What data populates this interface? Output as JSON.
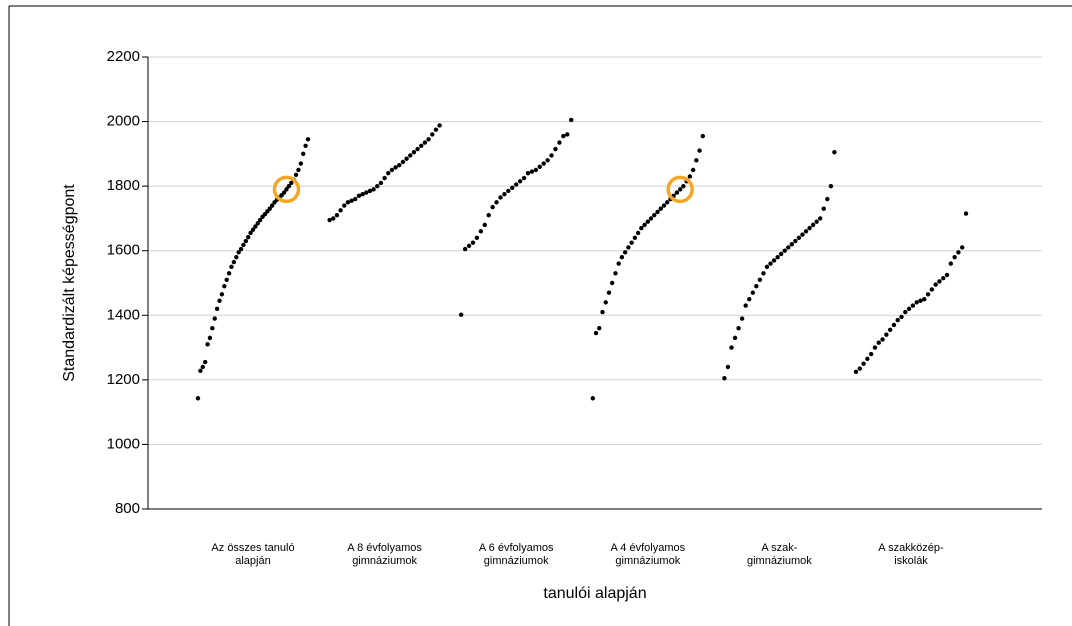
{
  "chart_data": {
    "type": "strip",
    "ylabel": "Standardizált képességpont",
    "xlabel": "tanulói alapján",
    "categories": [
      [
        "Az összes tanuló",
        "alapján"
      ],
      [
        "A 8 évfolyamos",
        "gimnáziumok"
      ],
      [
        "A 6 évfolyamos",
        "gimnáziumok"
      ],
      [
        "A 4 évfolyamos",
        "gimnáziumok"
      ],
      [
        "A szak-",
        "gimnáziumok"
      ],
      [
        "A szakközép-",
        "iskolák"
      ]
    ],
    "color": "#000000",
    "groups": [
      [
        1143,
        1228,
        1240,
        1255,
        1310,
        1330,
        1360,
        1390,
        1420,
        1445,
        1465,
        1490,
        1510,
        1530,
        1550,
        1565,
        1580,
        1595,
        1605,
        1618,
        1630,
        1642,
        1655,
        1665,
        1675,
        1685,
        1695,
        1705,
        1713,
        1722,
        1730,
        1740,
        1750,
        1758,
        1765,
        1772,
        1780,
        1790,
        1800,
        1810,
        1820,
        1835,
        1850,
        1870,
        1900,
        1925,
        1945
      ],
      [
        1695,
        1700,
        1710,
        1725,
        1740,
        1750,
        1755,
        1760,
        1770,
        1775,
        1780,
        1785,
        1790,
        1800,
        1810,
        1825,
        1840,
        1850,
        1858,
        1865,
        1875,
        1885,
        1895,
        1905,
        1915,
        1925,
        1935,
        1945,
        1960,
        1975,
        1988
      ],
      [
        1402,
        1605,
        1615,
        1625,
        1640,
        1660,
        1680,
        1710,
        1735,
        1750,
        1765,
        1775,
        1785,
        1795,
        1805,
        1815,
        1825,
        1840,
        1845,
        1850,
        1860,
        1870,
        1880,
        1895,
        1915,
        1935,
        1955,
        1960,
        2005
      ],
      [
        1143,
        1345,
        1360,
        1410,
        1440,
        1470,
        1500,
        1530,
        1560,
        1580,
        1595,
        1610,
        1625,
        1640,
        1655,
        1670,
        1680,
        1690,
        1700,
        1710,
        1720,
        1730,
        1740,
        1750,
        1760,
        1770,
        1780,
        1790,
        1800,
        1815,
        1830,
        1850,
        1880,
        1910,
        1955
      ],
      [
        1205,
        1240,
        1300,
        1330,
        1360,
        1390,
        1430,
        1450,
        1470,
        1490,
        1510,
        1530,
        1550,
        1560,
        1570,
        1580,
        1590,
        1600,
        1610,
        1620,
        1630,
        1640,
        1650,
        1660,
        1670,
        1680,
        1690,
        1700,
        1730,
        1760,
        1800,
        1905
      ],
      [
        1225,
        1235,
        1250,
        1265,
        1280,
        1300,
        1315,
        1325,
        1340,
        1355,
        1370,
        1385,
        1395,
        1410,
        1420,
        1430,
        1440,
        1445,
        1450,
        1465,
        1480,
        1495,
        1505,
        1515,
        1525,
        1560,
        1580,
        1595,
        1610,
        1715
      ]
    ],
    "highlights": [
      {
        "group": 0,
        "value": 1790,
        "color": "#f5a623"
      },
      {
        "group": 3,
        "value": 1790,
        "color": "#f5a623"
      }
    ],
    "ylim": [
      800,
      2200
    ],
    "yticks": [
      800,
      1000,
      1200,
      1400,
      1600,
      1800,
      2000,
      2200
    ],
    "grid": true
  }
}
